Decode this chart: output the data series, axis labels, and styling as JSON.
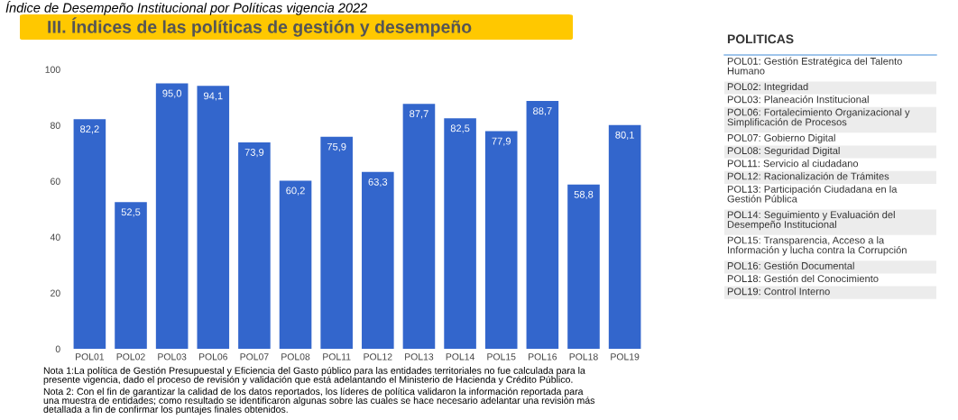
{
  "chart_data": {
    "type": "bar",
    "title": "Índice de Desempeño Institucional por Políticas vigencia 2022",
    "subtitle": "III. Índices de las políticas de gestión y desempeño",
    "categories": [
      "POL01",
      "POL02",
      "POL03",
      "POL06",
      "POL07",
      "POL08",
      "POL11",
      "POL12",
      "POL13",
      "POL14",
      "POL15",
      "POL16",
      "POL18",
      "POL19"
    ],
    "values": [
      82.2,
      52.5,
      95.0,
      94.1,
      73.9,
      60.2,
      75.9,
      63.3,
      87.7,
      82.5,
      77.9,
      88.7,
      58.8,
      80.1
    ],
    "value_labels": [
      "82,2",
      "52,5",
      "95,0",
      "94,1",
      "73,9",
      "60,2",
      "75,9",
      "63,3",
      "87,7",
      "82,5",
      "77,9",
      "88,7",
      "58,8",
      "80,1"
    ],
    "color": "#3366cc",
    "ylim": [
      0,
      100
    ],
    "yticks": [
      0,
      20,
      40,
      60,
      80,
      100
    ],
    "grid": false,
    "annotations": [
      "Nota 1:La política de Gestión Presupuestal y Eficiencia del Gasto público para las entidades territoriales no fue calculada para la\npresente vigencia, dado el proceso de revisión y validación que está adelantando el Ministerio de Hacienda y Crédito Público.",
      "Nota 2: Con el fin de garantizar la calidad de los datos reportados, los líderes de política validaron la información reportada para\nuna muestra de entidades; como resultado se identificaron algunas sobre las cuales se hace necesario adelantar una revisión más\ndetallada a fin de confirmar los puntajes finales obtenidos.",
      "POLITICAS",
      "POL01: Gestión Estratégica del Talento\nHumano",
      "POL02: Integridad",
      "POL03: Planeación Institucional",
      "POL06: Fortalecimiento Organizacional y\nSimplificación de Procesos",
      "POL07: Gobierno Digital",
      "POL08: Seguridad Digital",
      "POL11: Servicio al ciudadano",
      "POL12: Racionalización de Trámites",
      "POL13: Participación Ciudadana en la\nGestión Pública",
      "POL14: Seguimiento y Evaluación del\nDesempeño Institucional",
      "POL15: Transparencia, Acceso a la\nInformación y lucha contra la Corrupción",
      "POL16: Gestión Documental",
      "POL18: Gestión del Conocimiento",
      "POL19: Control Interno"
    ]
  }
}
